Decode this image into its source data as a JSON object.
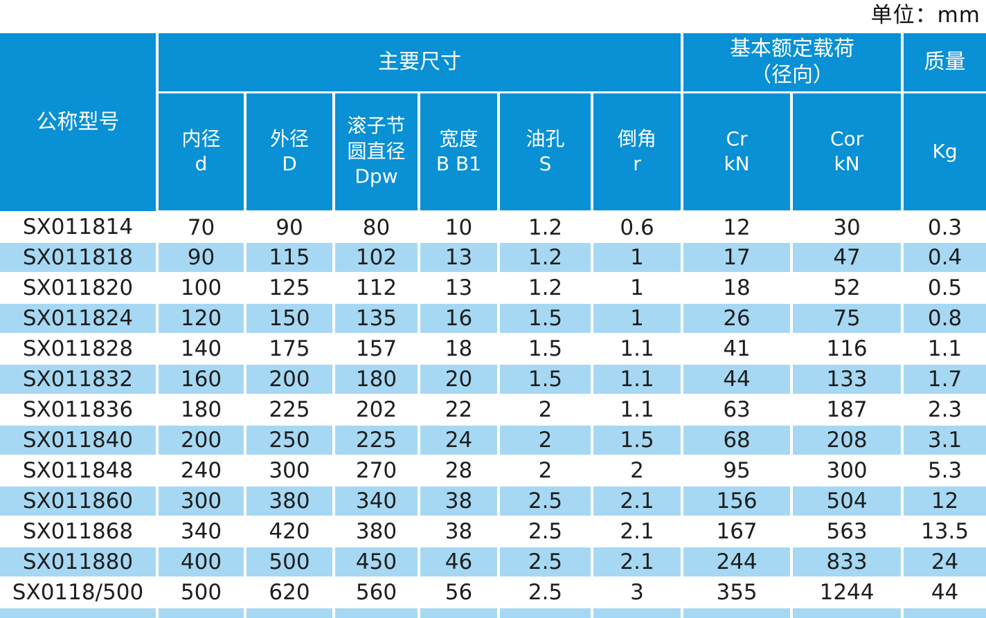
{
  "unit_label": "单位：mm",
  "colors": {
    "header_blue": "#0990d5",
    "stripe_blue": "#a6d8f3",
    "text_dark": "#1e1e1e",
    "header_text": "#ffffff"
  },
  "table": {
    "header": {
      "model": "公称型号",
      "main_dimensions": "主要尺寸",
      "basic_load": "基本额定载荷\n（径向）",
      "mass": "质量",
      "sub_headers": [
        "内径\nd",
        "外径\nD",
        "滚子节\n圆直径\nDpw",
        "宽度\nB B1",
        "油孔\nS",
        "倒角\nr",
        "Cr\nkN",
        "Cor\nkN",
        "Kg"
      ]
    },
    "column_keys": [
      "model",
      "inner-diameter-d",
      "outer-diameter-D",
      "roller-pitch-diameter-Dpw",
      "width-B-B1",
      "oil-hole-S",
      "chamfer-r",
      "dynamic-load-Cr-kN",
      "static-load-Cor-kN",
      "mass-kg"
    ],
    "rows": [
      [
        "SX011814",
        "70",
        "90",
        "80",
        "10",
        "1.2",
        "0.6",
        "12",
        "30",
        "0.3"
      ],
      [
        "SX011818",
        "90",
        "115",
        "102",
        "13",
        "1.2",
        "1",
        "17",
        "47",
        "0.4"
      ],
      [
        "SX011820",
        "100",
        "125",
        "112",
        "13",
        "1.2",
        "1",
        "18",
        "52",
        "0.5"
      ],
      [
        "SX011824",
        "120",
        "150",
        "135",
        "16",
        "1.5",
        "1",
        "26",
        "75",
        "0.8"
      ],
      [
        "SX011828",
        "140",
        "175",
        "157",
        "18",
        "1.5",
        "1.1",
        "41",
        "116",
        "1.1"
      ],
      [
        "SX011832",
        "160",
        "200",
        "180",
        "20",
        "1.5",
        "1.1",
        "44",
        "133",
        "1.7"
      ],
      [
        "SX011836",
        "180",
        "225",
        "202",
        "22",
        "2",
        "1.1",
        "63",
        "187",
        "2.3"
      ],
      [
        "SX011840",
        "200",
        "250",
        "225",
        "24",
        "2",
        "1.5",
        "68",
        "208",
        "3.1"
      ],
      [
        "SX011848",
        "240",
        "300",
        "270",
        "28",
        "2",
        "2",
        "95",
        "300",
        "5.3"
      ],
      [
        "SX011860",
        "300",
        "380",
        "340",
        "38",
        "2.5",
        "2.1",
        "156",
        "504",
        "12"
      ],
      [
        "SX011868",
        "340",
        "420",
        "380",
        "38",
        "2.5",
        "2.1",
        "167",
        "563",
        "13.5"
      ],
      [
        "SX011880",
        "400",
        "500",
        "450",
        "46",
        "2.5",
        "2.1",
        "244",
        "833",
        "24"
      ],
      [
        "SX0118/500",
        "500",
        "620",
        "560",
        "56",
        "2.5",
        "3",
        "355",
        "1244",
        "44"
      ]
    ],
    "has_partial_next_row": true
  }
}
